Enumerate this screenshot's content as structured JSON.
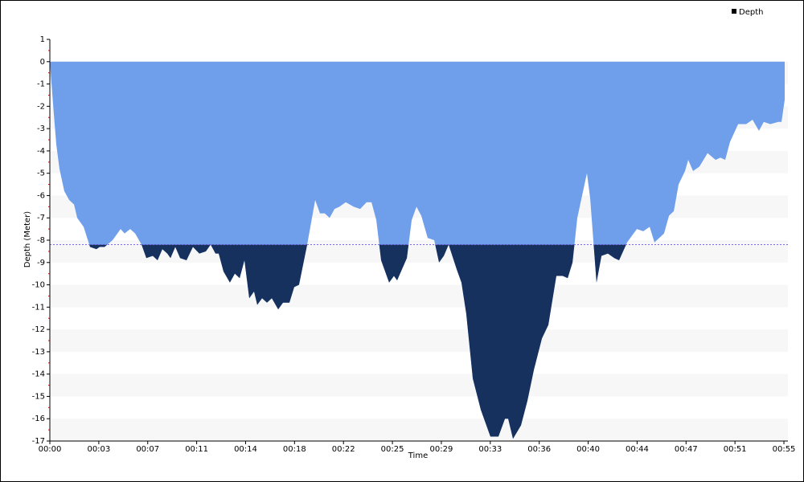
{
  "chart_data": {
    "type": "area",
    "x_label": "Time",
    "y_label": "Depth (Meter)",
    "legend_position": "top-right",
    "threshold": -8.2,
    "threshold_color": "#7b68ee",
    "color": "#6f9fea",
    "below_threshold_color": "#17315f",
    "banded_grid": true,
    "xlim": [
      0,
      55.3
    ],
    "ylim": [
      -17,
      1
    ],
    "yticks": [
      1,
      0,
      -1,
      -2,
      -3,
      -4,
      -5,
      -6,
      -7,
      -8,
      -9,
      -10,
      -11,
      -12,
      -13,
      -14,
      -15,
      -16,
      -17
    ],
    "xticks": [
      {
        "value": 0,
        "label": "00:00"
      },
      {
        "value": 3.667,
        "label": "00:03"
      },
      {
        "value": 7.333,
        "label": "00:07"
      },
      {
        "value": 11,
        "label": "00:11"
      },
      {
        "value": 14.667,
        "label": "00:14"
      },
      {
        "value": 18.333,
        "label": "00:18"
      },
      {
        "value": 22,
        "label": "00:22"
      },
      {
        "value": 25.667,
        "label": "00:25"
      },
      {
        "value": 29.333,
        "label": "00:29"
      },
      {
        "value": 33,
        "label": "00:33"
      },
      {
        "value": 36.667,
        "label": "00:36"
      },
      {
        "value": 40.333,
        "label": "00:40"
      },
      {
        "value": 44,
        "label": "00:44"
      },
      {
        "value": 47.667,
        "label": "00:47"
      },
      {
        "value": 51.333,
        "label": "00:51"
      },
      {
        "value": 55,
        "label": "00:55"
      }
    ],
    "series": [
      {
        "name": "Depth",
        "color": "#000000",
        "x": [
          0,
          0.24,
          0.48,
          0.72,
          1.08,
          1.45,
          1.81,
          2.05,
          2.53,
          3.01,
          3.49,
          3.73,
          4.1,
          4.7,
          5.3,
          5.6,
          6.02,
          6.39,
          6.87,
          7.23,
          7.71,
          8.07,
          8.43,
          8.8,
          9.04,
          9.4,
          9.76,
          10.24,
          10.72,
          11.2,
          11.69,
          12.05,
          12.41,
          12.65,
          13.01,
          13.49,
          13.86,
          14.22,
          14.58,
          14.94,
          15.3,
          15.54,
          15.9,
          16.27,
          16.63,
          17.11,
          17.47,
          17.95,
          18.31,
          18.67,
          19.28,
          19.88,
          20.24,
          20.6,
          20.96,
          21.33,
          21.69,
          22.17,
          22.77,
          23.25,
          23.73,
          24.1,
          24.46,
          24.82,
          25.42,
          25.78,
          26.02,
          26.75,
          27.11,
          27.47,
          27.83,
          28.31,
          28.8,
          29.16,
          29.52,
          29.88,
          30.48,
          30.84,
          31.2,
          31.69,
          32.29,
          33.01,
          33.61,
          34.1,
          34.34,
          34.7,
          35.3,
          35.78,
          36.27,
          36.87,
          37.35,
          37.95,
          38.43,
          38.8,
          39.16,
          39.52,
          40.24,
          40.48,
          40.96,
          41.33,
          41.81,
          42.29,
          42.65,
          43.25,
          43.98,
          44.46,
          44.94,
          45.3,
          46.02,
          46.39,
          46.75,
          47.11,
          47.59,
          47.83,
          48.19,
          48.67,
          49.28,
          49.88,
          50.24,
          50.6,
          50.96,
          51.57,
          52.17,
          52.65,
          53.13,
          53.49,
          53.98,
          54.58,
          54.82,
          55.06
        ],
        "values": [
          0,
          -1.9,
          -3.7,
          -4.8,
          -5.8,
          -6.2,
          -6.4,
          -7.0,
          -7.4,
          -8.3,
          -8.4,
          -8.3,
          -8.3,
          -8.0,
          -7.5,
          -7.7,
          -7.5,
          -7.7,
          -8.2,
          -8.8,
          -8.7,
          -8.9,
          -8.4,
          -8.6,
          -8.8,
          -8.3,
          -8.8,
          -8.9,
          -8.3,
          -8.6,
          -8.5,
          -8.2,
          -8.6,
          -8.6,
          -9.4,
          -9.9,
          -9.5,
          -9.7,
          -8.9,
          -10.6,
          -10.3,
          -10.9,
          -10.6,
          -10.8,
          -10.6,
          -11.1,
          -10.8,
          -10.8,
          -10.1,
          -10.0,
          -8.2,
          -6.2,
          -6.8,
          -6.8,
          -7.0,
          -6.6,
          -6.5,
          -6.3,
          -6.5,
          -6.6,
          -6.3,
          -6.3,
          -7.1,
          -8.9,
          -9.9,
          -9.6,
          -9.8,
          -8.8,
          -7.1,
          -6.5,
          -6.9,
          -7.9,
          -8.0,
          -9.0,
          -8.7,
          -8.2,
          -9.3,
          -9.9,
          -11.3,
          -14.2,
          -15.6,
          -16.8,
          -16.8,
          -16.0,
          -16.0,
          -16.9,
          -16.3,
          -15.2,
          -13.8,
          -12.4,
          -11.8,
          -9.6,
          -9.6,
          -9.7,
          -9.0,
          -7.0,
          -5.0,
          -6.1,
          -9.9,
          -8.7,
          -8.6,
          -8.8,
          -8.9,
          -8.1,
          -7.5,
          -7.6,
          -7.4,
          -8.1,
          -7.7,
          -6.9,
          -6.7,
          -5.5,
          -4.9,
          -4.4,
          -4.9,
          -4.7,
          -4.1,
          -4.4,
          -4.3,
          -4.4,
          -3.6,
          -2.8,
          -2.8,
          -2.6,
          -3.1,
          -2.7,
          -2.8,
          -2.7,
          -2.7,
          -1.7
        ]
      }
    ]
  }
}
